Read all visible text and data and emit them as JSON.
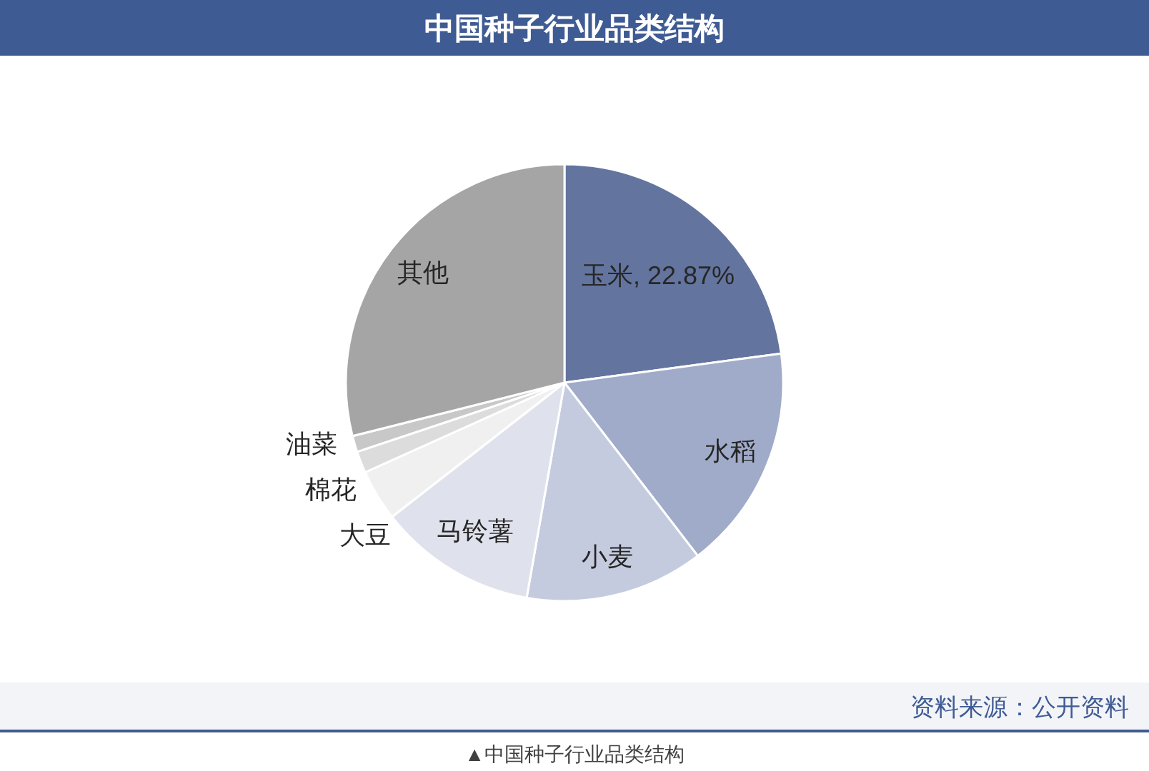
{
  "chart_data": {
    "type": "pie",
    "title": "中国种子行业品类结构",
    "categories": [
      "玉米",
      "水稻",
      "小麦",
      "马铃薯",
      "大豆",
      "棉花",
      "油菜",
      "其他"
    ],
    "values": [
      22.87,
      16.7,
      13.2,
      11.7,
      3.8,
      1.6,
      1.2,
      28.93
    ],
    "value_labels": [
      "22.87%",
      null,
      null,
      null,
      null,
      null,
      null,
      null
    ],
    "colors": [
      "#63749f",
      "#a0abc9",
      "#c5cbde",
      "#dfe2ec",
      "#f0f0f0",
      "#dcdcdc",
      "#c8c8c8",
      "#a5a5a5"
    ],
    "annotations": [
      "资料来源：公开资料",
      "▲中国种子行业品类结构"
    ]
  }
}
